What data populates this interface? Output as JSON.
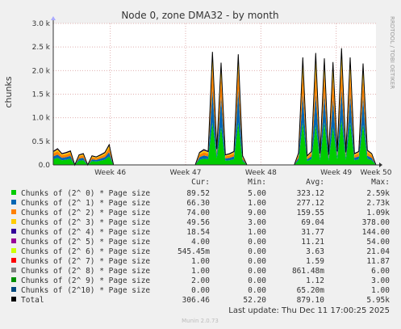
{
  "chart_data": {
    "type": "area",
    "stacked": true,
    "title": "Node 0, zone DMA32 - by month",
    "ylabel": "chunks",
    "ylim": [
      0,
      3000
    ],
    "yticks": [
      {
        "value": 0,
        "label": "0.0"
      },
      {
        "value": 500,
        "label": "0.5 k"
      },
      {
        "value": 1000,
        "label": "1.0 k"
      },
      {
        "value": 1500,
        "label": "1.5 k"
      },
      {
        "value": 2000,
        "label": "2.0 k"
      },
      {
        "value": 2500,
        "label": "2.5 k"
      },
      {
        "value": 3000,
        "label": "3.0 k"
      }
    ],
    "xlim": [
      0,
      30
    ],
    "xticks": [
      {
        "value": 5.3,
        "label": "Week 46"
      },
      {
        "value": 12.3,
        "label": "Week 47"
      },
      {
        "value": 19.3,
        "label": "Week 48"
      },
      {
        "value": 26.3,
        "label": "Week 49"
      },
      {
        "value": 33.3,
        "label": "Week 50"
      }
    ],
    "x_day_offsets": [
      0,
      0.4,
      0.8,
      1.2,
      1.6,
      2.0,
      2.4,
      2.8,
      3.2,
      3.6,
      4.0,
      4.4,
      4.8,
      5.2,
      5.6,
      6.0,
      6.4,
      6.8,
      7.2,
      7.6,
      8.0,
      8.4,
      8.8,
      9.2,
      9.6,
      10.0,
      10.4,
      10.8,
      11.2,
      11.6,
      12.0,
      12.4,
      12.8,
      13.2,
      13.6,
      14.0,
      14.4,
      14.8,
      15.2,
      15.6,
      16.0,
      16.4,
      16.8,
      17.2,
      17.6,
      18.0,
      18.4,
      18.8,
      19.2,
      19.6,
      20.0,
      20.4,
      20.8,
      21.2,
      21.6,
      22.0,
      22.4,
      22.8,
      23.2,
      23.6,
      24.0,
      24.4,
      24.8,
      25.2,
      25.6,
      26.0,
      26.4,
      26.8,
      27.2,
      27.6,
      28.0,
      28.4,
      28.8,
      29.2,
      29.6,
      30.0
    ],
    "series": [
      {
        "name": "Chunks of (2^ 0) * Page size",
        "color": "#00cc00",
        "values": [
          120,
          150,
          100,
          110,
          130,
          0,
          90,
          100,
          0,
          80,
          70,
          90,
          110,
          180,
          0,
          0,
          0,
          0,
          0,
          0,
          0,
          0,
          0,
          0,
          0,
          0,
          0,
          0,
          0,
          0,
          0,
          0,
          0,
          0,
          110,
          130,
          120,
          900,
          140,
          800,
          90,
          100,
          120,
          900,
          80,
          0,
          0,
          0,
          0,
          0,
          0,
          0,
          0,
          0,
          0,
          0,
          0,
          100,
          900,
          80,
          120,
          850,
          100,
          900,
          90,
          800,
          120,
          950,
          110,
          900,
          100,
          120,
          850,
          130,
          100,
          0
        ]
      },
      {
        "name": "Chunks of (2^ 1) * Page size",
        "color": "#0066b3",
        "values": [
          60,
          70,
          50,
          55,
          60,
          0,
          45,
          50,
          0,
          40,
          35,
          45,
          55,
          90,
          0,
          0,
          0,
          0,
          0,
          0,
          0,
          0,
          0,
          0,
          0,
          0,
          0,
          0,
          0,
          0,
          0,
          0,
          0,
          0,
          55,
          70,
          60,
          700,
          70,
          650,
          45,
          50,
          60,
          700,
          40,
          0,
          0,
          0,
          0,
          0,
          0,
          0,
          0,
          0,
          0,
          0,
          0,
          55,
          600,
          40,
          60,
          650,
          50,
          600,
          45,
          600,
          60,
          650,
          55,
          600,
          50,
          60,
          600,
          65,
          50,
          0
        ]
      },
      {
        "name": "Chunks of (2^ 2) * Page size",
        "color": "#ff8000",
        "values": [
          60,
          70,
          50,
          55,
          60,
          0,
          45,
          50,
          0,
          40,
          35,
          45,
          55,
          90,
          0,
          0,
          0,
          0,
          0,
          0,
          0,
          0,
          0,
          0,
          0,
          0,
          0,
          0,
          0,
          0,
          0,
          0,
          0,
          0,
          55,
          70,
          60,
          500,
          70,
          450,
          45,
          50,
          60,
          450,
          40,
          0,
          0,
          0,
          0,
          0,
          0,
          0,
          0,
          0,
          0,
          0,
          0,
          55,
          450,
          40,
          60,
          500,
          50,
          450,
          45,
          450,
          60,
          500,
          55,
          450,
          50,
          60,
          400,
          65,
          50,
          0
        ]
      },
      {
        "name": "Chunks of (2^ 3) * Page size",
        "color": "#ffcc00",
        "values": [
          30,
          35,
          25,
          28,
          30,
          0,
          22,
          25,
          0,
          20,
          18,
          22,
          28,
          45,
          0,
          0,
          0,
          0,
          0,
          0,
          0,
          0,
          0,
          0,
          0,
          0,
          0,
          0,
          0,
          0,
          0,
          0,
          0,
          0,
          28,
          35,
          30,
          200,
          35,
          180,
          22,
          25,
          30,
          200,
          20,
          0,
          0,
          0,
          0,
          0,
          0,
          0,
          0,
          0,
          0,
          0,
          0,
          28,
          220,
          20,
          30,
          250,
          25,
          200,
          22,
          220,
          30,
          250,
          28,
          220,
          25,
          30,
          200,
          33,
          25,
          0
        ]
      },
      {
        "name": "Chunks of (2^ 4) * Page size",
        "color": "#330099",
        "values": [
          10,
          12,
          8,
          9,
          10,
          0,
          7,
          8,
          0,
          7,
          6,
          7,
          9,
          15,
          0,
          0,
          0,
          0,
          0,
          0,
          0,
          0,
          0,
          0,
          0,
          0,
          0,
          0,
          0,
          0,
          0,
          0,
          0,
          0,
          9,
          12,
          10,
          60,
          12,
          55,
          7,
          8,
          10,
          60,
          7,
          0,
          0,
          0,
          0,
          0,
          0,
          0,
          0,
          0,
          0,
          0,
          0,
          9,
          70,
          7,
          10,
          80,
          8,
          70,
          7,
          70,
          10,
          80,
          9,
          70,
          8,
          10,
          65,
          11,
          8,
          0
        ]
      },
      {
        "name": "Chunks of (2^ 5) * Page size",
        "color": "#990099",
        "values": [
          3,
          4,
          3,
          3,
          3,
          0,
          2,
          3,
          0,
          2,
          2,
          2,
          3,
          5,
          0,
          0,
          0,
          0,
          0,
          0,
          0,
          0,
          0,
          0,
          0,
          0,
          0,
          0,
          0,
          0,
          0,
          0,
          0,
          0,
          3,
          4,
          3,
          20,
          4,
          18,
          2,
          3,
          3,
          20,
          2,
          0,
          0,
          0,
          0,
          0,
          0,
          0,
          0,
          0,
          0,
          0,
          0,
          3,
          22,
          2,
          3,
          25,
          3,
          22,
          2,
          22,
          3,
          25,
          3,
          22,
          3,
          3,
          20,
          4,
          3,
          0
        ]
      },
      {
        "name": "Chunks of (2^ 6) * Page size",
        "color": "#ccff00",
        "values": [
          1,
          1,
          1,
          1,
          1,
          0,
          1,
          1,
          0,
          1,
          1,
          1,
          1,
          2,
          0,
          0,
          0,
          0,
          0,
          0,
          0,
          0,
          0,
          0,
          0,
          0,
          0,
          0,
          0,
          0,
          0,
          0,
          0,
          0,
          1,
          1,
          1,
          8,
          1,
          7,
          1,
          1,
          1,
          8,
          1,
          0,
          0,
          0,
          0,
          0,
          0,
          0,
          0,
          0,
          0,
          0,
          0,
          1,
          8,
          1,
          1,
          10,
          1,
          8,
          1,
          8,
          1,
          10,
          1,
          8,
          1,
          1,
          8,
          1,
          1,
          0
        ]
      },
      {
        "name": "Chunks of (2^ 7) * Page size",
        "color": "#ff0000",
        "values": [
          1,
          1,
          1,
          1,
          1,
          0,
          1,
          1,
          0,
          1,
          1,
          1,
          1,
          1,
          0,
          0,
          0,
          0,
          0,
          0,
          0,
          0,
          0,
          0,
          0,
          0,
          0,
          0,
          0,
          0,
          0,
          0,
          0,
          0,
          1,
          1,
          1,
          4,
          1,
          4,
          1,
          1,
          1,
          4,
          1,
          0,
          0,
          0,
          0,
          0,
          0,
          0,
          0,
          0,
          0,
          0,
          0,
          1,
          5,
          1,
          1,
          5,
          1,
          5,
          1,
          5,
          1,
          5,
          1,
          5,
          1,
          1,
          4,
          1,
          1,
          0
        ]
      },
      {
        "name": "Chunks of (2^ 8) * Page size",
        "color": "#808080",
        "values": [
          1,
          1,
          1,
          1,
          1,
          0,
          1,
          1,
          0,
          1,
          1,
          1,
          1,
          1,
          0,
          0,
          0,
          0,
          0,
          0,
          0,
          0,
          0,
          0,
          0,
          0,
          0,
          0,
          0,
          0,
          0,
          0,
          0,
          0,
          1,
          1,
          1,
          3,
          1,
          3,
          1,
          1,
          1,
          3,
          1,
          0,
          0,
          0,
          0,
          0,
          0,
          0,
          0,
          0,
          0,
          0,
          0,
          1,
          3,
          1,
          1,
          3,
          1,
          3,
          1,
          3,
          1,
          3,
          1,
          3,
          1,
          1,
          3,
          1,
          1,
          0
        ]
      },
      {
        "name": "Chunks of (2^ 9) * Page size",
        "color": "#008f00",
        "values": [
          1,
          1,
          1,
          1,
          1,
          0,
          1,
          1,
          0,
          1,
          1,
          1,
          1,
          1,
          0,
          0,
          0,
          0,
          0,
          0,
          0,
          0,
          0,
          0,
          0,
          0,
          0,
          0,
          0,
          0,
          0,
          0,
          0,
          0,
          1,
          1,
          1,
          2,
          1,
          2,
          1,
          1,
          1,
          2,
          1,
          0,
          0,
          0,
          0,
          0,
          0,
          0,
          0,
          0,
          0,
          0,
          0,
          1,
          2,
          1,
          1,
          2,
          1,
          2,
          1,
          2,
          1,
          2,
          1,
          2,
          1,
          1,
          2,
          1,
          1,
          0
        ]
      },
      {
        "name": "Chunks of (2^10) * Page size",
        "color": "#00487d",
        "values": [
          0,
          0,
          0,
          0,
          0,
          0,
          0,
          0,
          0,
          0,
          0,
          0,
          0,
          0,
          0,
          0,
          0,
          0,
          0,
          0,
          0,
          0,
          0,
          0,
          0,
          0,
          0,
          0,
          0,
          0,
          0,
          0,
          0,
          0,
          0,
          0,
          0,
          0,
          0,
          0,
          0,
          0,
          0,
          0,
          0,
          0,
          0,
          0,
          0,
          0,
          0,
          0,
          0,
          0,
          0,
          0,
          0,
          0,
          0,
          0,
          0,
          0,
          0,
          0,
          0,
          0,
          0,
          0,
          0,
          0,
          0,
          0,
          0,
          0,
          0,
          0
        ]
      }
    ],
    "total": {
      "name": "Total",
      "color": "#000000"
    },
    "grid": true
  },
  "legend": {
    "headers": {
      "cur": "Cur:",
      "min": "Min:",
      "avg": "Avg:",
      "max": "Max:"
    },
    "rows": [
      {
        "name": "Chunks of (2^ 0) * Page size",
        "color": "#00cc00",
        "cur": "89.52",
        "min": "5.00",
        "avg": "323.12",
        "max": "2.59k"
      },
      {
        "name": "Chunks of (2^ 1) * Page size",
        "color": "#0066b3",
        "cur": "66.30",
        "min": "1.00",
        "avg": "277.12",
        "max": "2.73k"
      },
      {
        "name": "Chunks of (2^ 2) * Page size",
        "color": "#ff8000",
        "cur": "74.00",
        "min": "9.00",
        "avg": "159.55",
        "max": "1.09k"
      },
      {
        "name": "Chunks of (2^ 3) * Page size",
        "color": "#ffcc00",
        "cur": "49.56",
        "min": "3.00",
        "avg": "69.04",
        "max": "378.00"
      },
      {
        "name": "Chunks of (2^ 4) * Page size",
        "color": "#330099",
        "cur": "18.54",
        "min": "1.00",
        "avg": "31.77",
        "max": "144.00"
      },
      {
        "name": "Chunks of (2^ 5) * Page size",
        "color": "#990099",
        "cur": "4.00",
        "min": "0.00",
        "avg": "11.21",
        "max": "54.00"
      },
      {
        "name": "Chunks of (2^ 6) * Page size",
        "color": "#ccff00",
        "cur": "545.45m",
        "min": "0.00",
        "avg": "3.63",
        "max": "21.04"
      },
      {
        "name": "Chunks of (2^ 7) * Page size",
        "color": "#ff0000",
        "cur": "1.00",
        "min": "0.00",
        "avg": "1.59",
        "max": "11.87"
      },
      {
        "name": "Chunks of (2^ 8) * Page size",
        "color": "#808080",
        "cur": "1.00",
        "min": "0.00",
        "avg": "861.48m",
        "max": "6.00"
      },
      {
        "name": "Chunks of (2^ 9) * Page size",
        "color": "#008f00",
        "cur": "2.00",
        "min": "0.00",
        "avg": "1.12",
        "max": "3.00"
      },
      {
        "name": "Chunks of (2^10) * Page size",
        "color": "#00487d",
        "cur": "0.00",
        "min": "0.00",
        "avg": "65.20m",
        "max": "1.00"
      },
      {
        "name": "Total",
        "color": "#000000",
        "cur": "306.46",
        "min": "52.20",
        "avg": "879.10",
        "max": "5.95k"
      }
    ]
  },
  "footer": {
    "last_update": "Last update: Thu Dec 11 17:00:25 2025",
    "version": "Munin 2.0.73"
  },
  "side_label": "RRDTOOL / TOBI OETIKER"
}
